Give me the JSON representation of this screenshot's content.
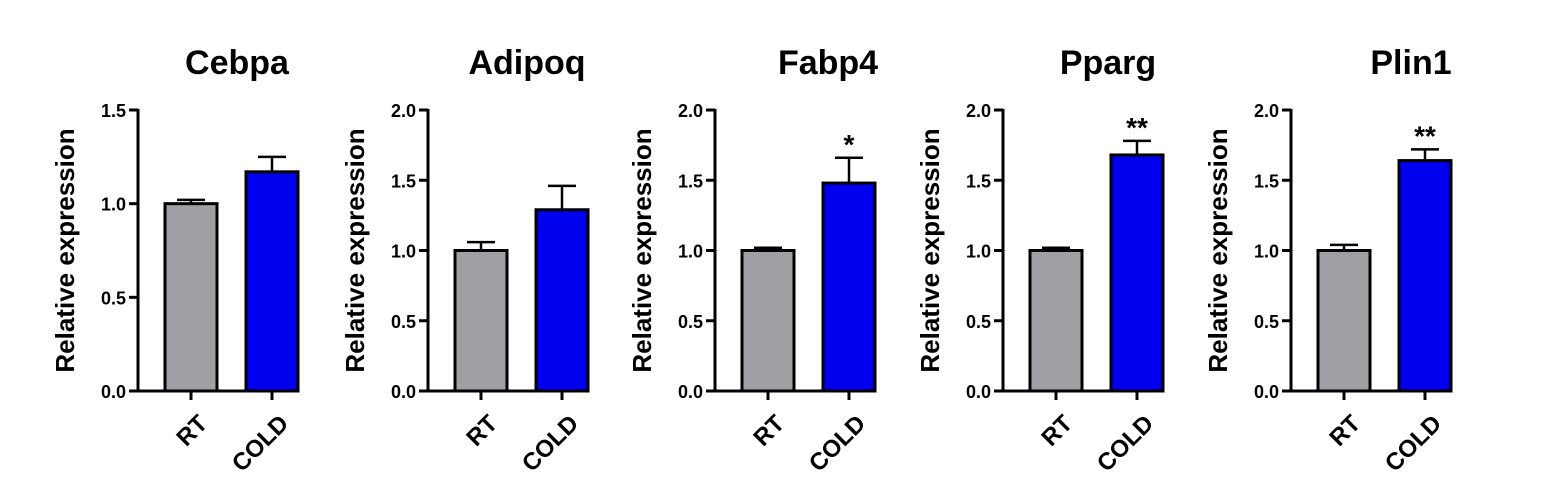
{
  "chart_data": [
    {
      "type": "bar",
      "title": "Cebpa",
      "ylabel": "Relative expression",
      "ylim": [
        0,
        1.5
      ],
      "yticks": [
        "0.0",
        "0.5",
        "1.0",
        "1.5"
      ],
      "categories": [
        "RT",
        "COLD"
      ],
      "values": [
        1.0,
        1.17
      ],
      "errors": [
        0.02,
        0.08
      ],
      "significance": [
        "",
        ""
      ],
      "colors": [
        "#a0a0a4",
        "#0000ee"
      ]
    },
    {
      "type": "bar",
      "title": "Adipoq",
      "ylabel": "Relative expression",
      "ylim": [
        0,
        2.0
      ],
      "yticks": [
        "0.0",
        "0.5",
        "1.0",
        "1.5",
        "2.0"
      ],
      "categories": [
        "RT",
        "COLD"
      ],
      "values": [
        1.0,
        1.29
      ],
      "errors": [
        0.06,
        0.17
      ],
      "significance": [
        "",
        ""
      ],
      "colors": [
        "#a0a0a4",
        "#0000ee"
      ]
    },
    {
      "type": "bar",
      "title": "Fabp4",
      "ylabel": "Relative expression",
      "ylim": [
        0,
        2.0
      ],
      "yticks": [
        "0.0",
        "0.5",
        "1.0",
        "1.5",
        "2.0"
      ],
      "categories": [
        "RT",
        "COLD"
      ],
      "values": [
        1.0,
        1.48
      ],
      "errors": [
        0.02,
        0.18
      ],
      "significance": [
        "",
        "*"
      ],
      "colors": [
        "#a0a0a4",
        "#0000ee"
      ]
    },
    {
      "type": "bar",
      "title": "Pparg",
      "ylabel": "Relative expression",
      "ylim": [
        0,
        2.0
      ],
      "yticks": [
        "0.0",
        "0.5",
        "1.0",
        "1.5",
        "2.0"
      ],
      "categories": [
        "RT",
        "COLD"
      ],
      "values": [
        1.0,
        1.68
      ],
      "errors": [
        0.02,
        0.1
      ],
      "significance": [
        "",
        "**"
      ],
      "colors": [
        "#a0a0a4",
        "#0000ee"
      ]
    },
    {
      "type": "bar",
      "title": "Plin1",
      "ylabel": "Relative expression",
      "ylim": [
        0,
        2.0
      ],
      "yticks": [
        "0.0",
        "0.5",
        "1.0",
        "1.5",
        "2.0"
      ],
      "categories": [
        "RT",
        "COLD"
      ],
      "values": [
        1.0,
        1.64
      ],
      "errors": [
        0.04,
        0.08
      ],
      "significance": [
        "",
        "**"
      ],
      "colors": [
        "#a0a0a4",
        "#0000ee"
      ]
    }
  ]
}
